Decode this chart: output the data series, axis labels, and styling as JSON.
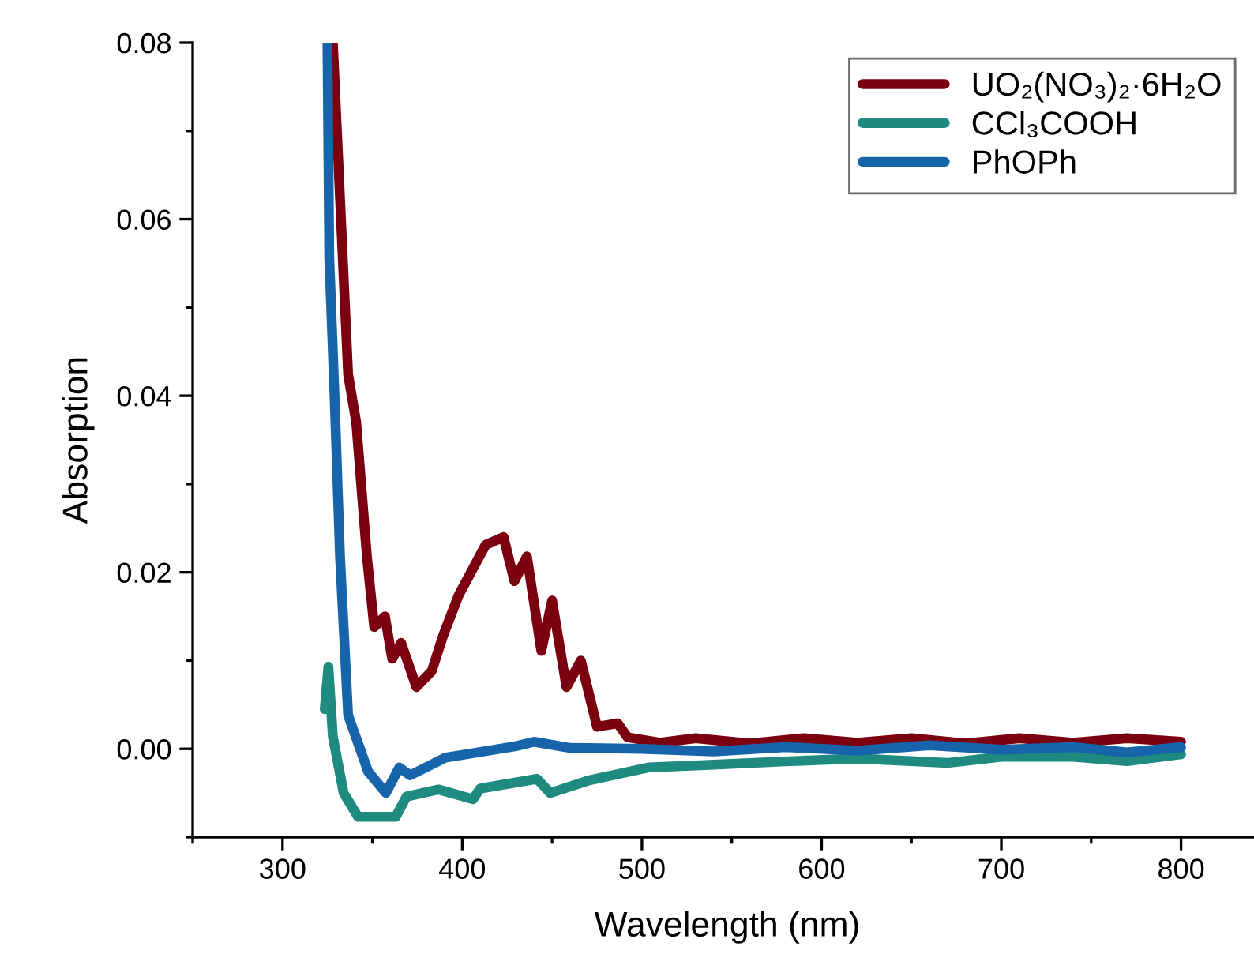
{
  "chart_data": {
    "type": "line",
    "xlabel": "Wavelength (nm)",
    "ylabel": "Absorption",
    "xlim": [
      250,
      845
    ],
    "ylim": [
      -0.01,
      0.08
    ],
    "xticks": [
      {
        "value": 250,
        "label": null
      },
      300,
      {
        "value": 350,
        "label": null
      },
      400,
      {
        "value": 450,
        "label": null
      },
      500,
      {
        "value": 550,
        "label": null
      },
      600,
      {
        "value": 650,
        "label": null
      },
      700,
      {
        "value": 750,
        "label": null
      },
      800
    ],
    "yticks": [
      {
        "value": -0.01,
        "label": null
      },
      {
        "value": 0,
        "label": "0.00"
      },
      {
        "value": 0.01,
        "label": null
      },
      {
        "value": 0.02,
        "label": "0.02"
      },
      {
        "value": 0.03,
        "label": null
      },
      {
        "value": 0.04,
        "label": "0.04"
      },
      {
        "value": 0.05,
        "label": null
      },
      {
        "value": 0.06,
        "label": "0.06"
      },
      {
        "value": 0.07,
        "label": null
      },
      {
        "value": 0.08,
        "label": "0.08"
      }
    ],
    "legend": "top right",
    "grid": false,
    "marker": "none",
    "line_style": "solid",
    "series": [
      {
        "name": "UO₂(NO₃)₂·6H₂O",
        "color": "#7b0010",
        "x": [
          328,
          336.5,
          341,
          347,
          351,
          357,
          361,
          366,
          374.5,
          383,
          389.5,
          398,
          413,
          423,
          429,
          436,
          444,
          450,
          458,
          466,
          475,
          486.5,
          492,
          510,
          530,
          560,
          590,
          620,
          650,
          680,
          710,
          740,
          770,
          800
        ],
        "values": [
          0.08,
          0.0424,
          0.037,
          0.0217,
          0.0138,
          0.015,
          0.0102,
          0.012,
          0.007,
          0.0088,
          0.0129,
          0.0174,
          0.0231,
          0.024,
          0.019,
          0.0218,
          0.0111,
          0.0168,
          0.007,
          0.01,
          0.0025,
          0.0029,
          0.0013,
          0.0007,
          0.0012,
          0.0006,
          0.0012,
          0.0007,
          0.0012,
          0.0006,
          0.0012,
          0.0007,
          0.0012,
          0.0008
        ]
      },
      {
        "name": "CCl₃COOH",
        "color": "#1f8a80",
        "x": [
          323.5,
          325.5,
          328,
          334,
          342,
          363,
          369,
          386.8,
          406,
          410,
          441.6,
          449,
          470,
          504,
          540,
          582,
          620,
          670,
          700,
          740,
          770,
          800
        ],
        "values": [
          0.0045,
          0.0093,
          0.0014,
          -0.005,
          -0.0077,
          -0.0077,
          -0.0054,
          -0.0046,
          -0.0057,
          -0.0045,
          -0.0034,
          -0.005,
          -0.0036,
          -0.0021,
          -0.0018,
          -0.0014,
          -0.0011,
          -0.0016,
          -0.0009,
          -0.0009,
          -0.0014,
          -0.0006
        ]
      },
      {
        "name": "PhOPh",
        "color": "#1764ab",
        "x": [
          325,
          326,
          329,
          332,
          336.5,
          347.7,
          357.5,
          365,
          371,
          390.6,
          429.8,
          440,
          460,
          500,
          540,
          580,
          620,
          660,
          700,
          740,
          770,
          800
        ],
        "values": [
          0.08,
          0.0557,
          0.0396,
          0.0217,
          0.0038,
          -0.0026,
          -0.005,
          -0.0021,
          -0.003,
          -0.001,
          0.0003,
          0.0008,
          0.0001,
          0.0,
          -0.0003,
          0.0002,
          -0.0002,
          0.0004,
          -0.0001,
          0.0002,
          -0.0004,
          0.0002
        ]
      }
    ]
  }
}
